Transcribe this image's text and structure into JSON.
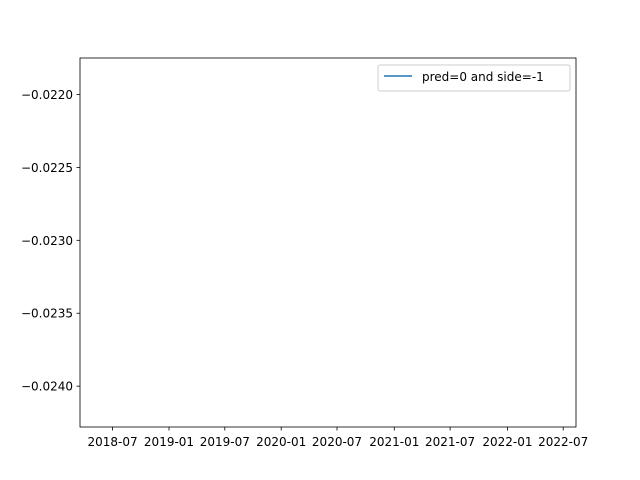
{
  "chart_data": {
    "type": "line",
    "title": "",
    "xlabel": "",
    "ylabel": "",
    "x_tick_labels": [
      "2018-07",
      "2019-01",
      "2019-07",
      "2020-01",
      "2020-07",
      "2021-01",
      "2021-07",
      "2022-01",
      "2022-07"
    ],
    "y_ticks": [
      -0.022,
      -0.0225,
      -0.023,
      -0.0235,
      -0.024
    ],
    "y_tick_labels": [
      "−0.0220",
      "−0.0225",
      "−0.0230",
      "−0.0235",
      "−0.0240"
    ],
    "ylim": [
      -0.02428,
      -0.02175
    ],
    "grid": false,
    "legend_position": "upper right",
    "series": [
      {
        "name": "pred=0 and side=-1",
        "color": "#1f77b4",
        "x": [],
        "y": []
      }
    ]
  }
}
